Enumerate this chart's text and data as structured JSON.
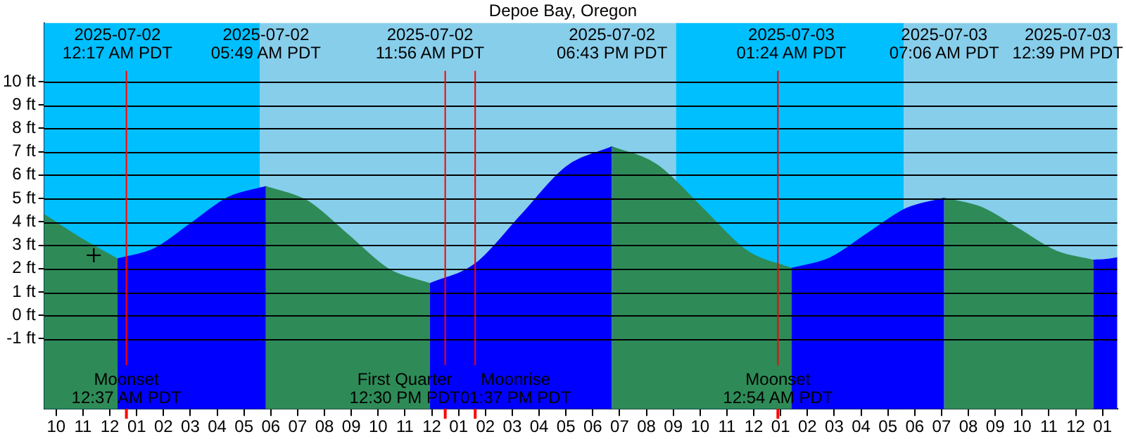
{
  "chart_data": {
    "type": "area",
    "title": "Depoe Bay, Oregon",
    "series": [
      {
        "color": "#2e8b57",
        "x": [
          "2025-07-01T21:33",
          "2025-07-01T22:54",
          "2025-07-02T00:17"
        ],
        "values": [
          4.3,
          3.3,
          2.4
        ]
      },
      {
        "color": "#0000ff",
        "x": [
          "2025-07-02T00:17",
          "2025-07-02T01:40",
          "2025-07-02T03:03",
          "2025-07-02T04:26",
          "2025-07-02T05:49"
        ],
        "values": [
          2.4,
          2.85,
          3.95,
          5.05,
          5.5
        ]
      },
      {
        "color": "#2e8b57",
        "x": [
          "2025-07-02T05:49",
          "2025-07-02T07:21",
          "2025-07-02T08:53",
          "2025-07-02T10:24",
          "2025-07-02T11:56"
        ],
        "values": [
          5.5,
          4.89,
          3.43,
          1.96,
          1.35
        ]
      },
      {
        "color": "#0000ff",
        "x": [
          "2025-07-02T11:56",
          "2025-07-02T13:38",
          "2025-07-02T15:20",
          "2025-07-02T17:01",
          "2025-07-02T18:43"
        ],
        "values": [
          1.35,
          2.2,
          4.28,
          6.35,
          7.2
        ]
      },
      {
        "color": "#2e8b57",
        "x": [
          "2025-07-02T18:43",
          "2025-07-02T20:23",
          "2025-07-02T22:04",
          "2025-07-02T23:44",
          "2025-07-03T01:24"
        ],
        "values": [
          7.2,
          6.44,
          4.6,
          2.76,
          2.0
        ]
      },
      {
        "color": "#0000ff",
        "x": [
          "2025-07-03T01:24",
          "2025-07-03T02:50",
          "2025-07-03T04:15",
          "2025-07-03T05:41",
          "2025-07-03T07:06"
        ],
        "values": [
          2.0,
          2.44,
          3.5,
          4.56,
          5.0
        ]
      },
      {
        "color": "#2e8b57",
        "x": [
          "2025-07-03T07:06",
          "2025-07-03T08:29",
          "2025-07-03T09:53",
          "2025-07-03T11:16",
          "2025-07-03T12:39"
        ],
        "values": [
          5.0,
          4.61,
          3.68,
          2.74,
          2.35
        ]
      },
      {
        "color": "#0000ff",
        "x": [
          "2025-07-03T12:39",
          "2025-07-03T13:06",
          "2025-07-03T13:33"
        ],
        "values": [
          2.35,
          2.38,
          2.45
        ]
      },
      {
        "type": "scatter",
        "marker": "cross",
        "color": "#000000",
        "x": [
          "2025-07-01T23:24"
        ],
        "values": [
          2.57
        ]
      }
    ],
    "xlim": [
      "2025-07-01T21:33",
      "2025-07-03T13:33"
    ],
    "xticks": [
      {
        "value": "2025-07-01T22:00",
        "label": "10"
      },
      {
        "value": "2025-07-01T23:00",
        "label": "11"
      },
      {
        "value": "2025-07-02T00:00",
        "label": "12"
      },
      {
        "value": "2025-07-02T01:00",
        "label": "01"
      },
      {
        "value": "2025-07-02T02:00",
        "label": "02"
      },
      {
        "value": "2025-07-02T03:00",
        "label": "03"
      },
      {
        "value": "2025-07-02T04:00",
        "label": "04"
      },
      {
        "value": "2025-07-02T05:00",
        "label": "05"
      },
      {
        "value": "2025-07-02T06:00",
        "label": "06"
      },
      {
        "value": "2025-07-02T07:00",
        "label": "07"
      },
      {
        "value": "2025-07-02T08:00",
        "label": "08"
      },
      {
        "value": "2025-07-02T09:00",
        "label": "09"
      },
      {
        "value": "2025-07-02T10:00",
        "label": "10"
      },
      {
        "value": "2025-07-02T11:00",
        "label": "11"
      },
      {
        "value": "2025-07-02T12:00",
        "label": "12"
      },
      {
        "value": "2025-07-02T13:00",
        "label": "01"
      },
      {
        "value": "2025-07-02T14:00",
        "label": "02"
      },
      {
        "value": "2025-07-02T15:00",
        "label": "03"
      },
      {
        "value": "2025-07-02T16:00",
        "label": "04"
      },
      {
        "value": "2025-07-02T17:00",
        "label": "05"
      },
      {
        "value": "2025-07-02T18:00",
        "label": "06"
      },
      {
        "value": "2025-07-02T19:00",
        "label": "07"
      },
      {
        "value": "2025-07-02T20:00",
        "label": "08"
      },
      {
        "value": "2025-07-02T21:00",
        "label": "09"
      },
      {
        "value": "2025-07-02T22:00",
        "label": "10"
      },
      {
        "value": "2025-07-02T23:00",
        "label": "11"
      },
      {
        "value": "2025-07-03T00:00",
        "label": "12"
      },
      {
        "value": "2025-07-03T01:00",
        "label": "01"
      },
      {
        "value": "2025-07-03T02:00",
        "label": "02"
      },
      {
        "value": "2025-07-03T03:00",
        "label": "03"
      },
      {
        "value": "2025-07-03T04:00",
        "label": "04"
      },
      {
        "value": "2025-07-03T05:00",
        "label": "05"
      },
      {
        "value": "2025-07-03T06:00",
        "label": "06"
      },
      {
        "value": "2025-07-03T07:00",
        "label": "07"
      },
      {
        "value": "2025-07-03T08:00",
        "label": "08"
      },
      {
        "value": "2025-07-03T09:00",
        "label": "09"
      },
      {
        "value": "2025-07-03T10:00",
        "label": "10"
      },
      {
        "value": "2025-07-03T11:00",
        "label": "11"
      },
      {
        "value": "2025-07-03T12:00",
        "label": "12"
      },
      {
        "value": "2025-07-03T13:00",
        "label": "01"
      }
    ],
    "ylim": [
      -4,
      12.5
    ],
    "yticks": [
      {
        "value": -1,
        "label": "-1 ft"
      },
      {
        "value": 0,
        "label": "0 ft"
      },
      {
        "value": 1,
        "label": "1 ft"
      },
      {
        "value": 2,
        "label": "2 ft"
      },
      {
        "value": 3,
        "label": "3 ft"
      },
      {
        "value": 4,
        "label": "4 ft"
      },
      {
        "value": 5,
        "label": "5 ft"
      },
      {
        "value": 6,
        "label": "6 ft"
      },
      {
        "value": 7,
        "label": "7 ft"
      },
      {
        "value": 8,
        "label": "8 ft"
      },
      {
        "value": 9,
        "label": "9 ft"
      },
      {
        "value": 10,
        "label": "10 ft"
      }
    ],
    "grid": "y",
    "legend": false,
    "bands": [
      {
        "axis": "x",
        "from": "2025-07-01T21:33",
        "to": "2025-07-02T05:36",
        "color": "#00bfff"
      },
      {
        "axis": "x",
        "from": "2025-07-02T05:36",
        "to": "2025-07-02T21:06",
        "color": "#87ceeb"
      },
      {
        "axis": "x",
        "from": "2025-07-02T21:06",
        "to": "2025-07-03T05:36",
        "color": "#00bfff"
      },
      {
        "axis": "x",
        "from": "2025-07-03T05:36",
        "to": "2025-07-03T13:33",
        "color": "#87ceeb"
      }
    ],
    "ref_lines": [
      {
        "axis": "x",
        "value": "2025-07-02T00:37",
        "label": "Moonset\n12:37 AM PDT",
        "color": "#ff0000"
      },
      {
        "axis": "x",
        "value": "2025-07-02T12:30",
        "label": "First Quarter\n12:30 PM PDT",
        "color": "#ff0000"
      },
      {
        "axis": "x",
        "value": "2025-07-02T13:37",
        "label": "Moonrise\n01:37 PM PDT",
        "color": "#ff0000"
      },
      {
        "axis": "x",
        "value": "2025-07-03T00:54",
        "label": "Moonset\n12:54 AM PDT",
        "color": "#ff0000"
      }
    ],
    "annotations": [
      "2025-07-02\n12:17 AM PDT",
      "2025-07-02\n05:49 AM PDT",
      "2025-07-02\n11:56 AM PDT",
      "2025-07-02\n06:43 PM PDT",
      "2025-07-03\n01:24 AM PDT",
      "2025-07-03\n07:06 AM PDT",
      "2025-07-03\n12:39 PM PDT"
    ]
  }
}
